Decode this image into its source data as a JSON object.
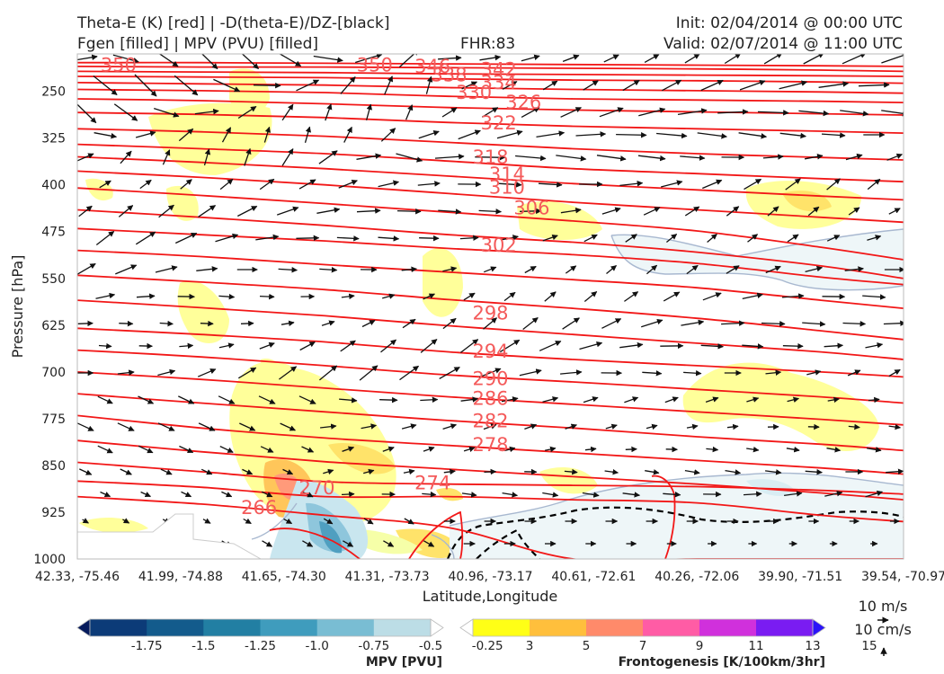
{
  "header": {
    "line1_left": "Theta-E (K) [red] | -D(theta-E)/DZ-[black]",
    "line2_left": "Fgen [filled] | MPV (PVU) [filled]",
    "fhr": "FHR:83",
    "init": "Init: 02/04/2014 @ 00:00 UTC",
    "valid": "Valid: 02/07/2014 @ 11:00 UTC"
  },
  "chart_data": {
    "type": "cross-section",
    "title": "Theta-E (K) [red] | -D(theta-E)/DZ-[black]",
    "subtitle": "Fgen [filled] | MPV (PVU) [filled]",
    "xlabel": "Latitude,Longitude",
    "ylabel": "Pressure [hPa]",
    "x_ticks": [
      "42.33, -75.46",
      "41.99, -74.88",
      "41.65, -74.30",
      "41.31, -73.73",
      "40.96, -73.17",
      "40.61, -72.61",
      "40.26, -72.06",
      "39.90, -71.51",
      "39.54, -70.97"
    ],
    "y_ticks": [
      250,
      325,
      400,
      475,
      550,
      625,
      700,
      775,
      850,
      925,
      1000
    ],
    "ylim": [
      1000,
      190
    ],
    "theta_e_contour_labels": [
      {
        "value": "266",
        "x": 0.22,
        "p": 918
      },
      {
        "value": "270",
        "x": 0.29,
        "p": 886
      },
      {
        "value": "274",
        "x": 0.43,
        "p": 878
      },
      {
        "value": "278",
        "x": 0.5,
        "p": 817
      },
      {
        "value": "282",
        "x": 0.5,
        "p": 779
      },
      {
        "value": "286",
        "x": 0.5,
        "p": 743
      },
      {
        "value": "290",
        "x": 0.5,
        "p": 711
      },
      {
        "value": "294",
        "x": 0.5,
        "p": 667
      },
      {
        "value": "298",
        "x": 0.5,
        "p": 606
      },
      {
        "value": "302",
        "x": 0.51,
        "p": 497
      },
      {
        "value": "306",
        "x": 0.55,
        "p": 437
      },
      {
        "value": "310",
        "x": 0.52,
        "p": 404
      },
      {
        "value": "314",
        "x": 0.52,
        "p": 383
      },
      {
        "value": "318",
        "x": 0.5,
        "p": 356
      },
      {
        "value": "322",
        "x": 0.51,
        "p": 301
      },
      {
        "value": "326",
        "x": 0.54,
        "p": 268
      },
      {
        "value": "330",
        "x": 0.48,
        "p": 252
      },
      {
        "value": "334",
        "x": 0.51,
        "p": 236
      },
      {
        "value": "338",
        "x": 0.45,
        "p": 224
      },
      {
        "value": "342",
        "x": 0.51,
        "p": 215
      },
      {
        "value": "346",
        "x": 0.43,
        "p": 210
      },
      {
        "value": "350",
        "x": 0.36,
        "p": 208
      },
      {
        "value": "350",
        "x": 0.05,
        "p": 208
      }
    ],
    "mpv_colorbar": {
      "label": "MPV [PVU]",
      "ticks": [
        "-1.75",
        "-1.5",
        "-1.25",
        "-1.0",
        "-0.75",
        "-0.5",
        "-0.25"
      ],
      "colors": [
        "#051a5c",
        "#0c3b78",
        "#135b8c",
        "#227fa3",
        "#3f9cbd",
        "#79bdd3",
        "#bcdde6",
        "#ffffff"
      ]
    },
    "fgen_colorbar": {
      "label": "Frontogenesis [K/100km/3hr]",
      "ticks": [
        "3",
        "5",
        "7",
        "9",
        "11",
        "13",
        "15"
      ],
      "colors": [
        "#ffffff",
        "#ffff16",
        "#ffbf3c",
        "#ff8a6a",
        "#ff5ca5",
        "#d030dc",
        "#7a1cf2",
        "#2b14f8"
      ]
    },
    "vector_key": {
      "horizontal": "10 m/s",
      "vertical": "10 cm/s"
    },
    "colors": {
      "theta_e": "#f21717",
      "stability": "#000000",
      "fgen_low": "#ffff9a",
      "mpv_neg": "#eef6f8"
    }
  }
}
